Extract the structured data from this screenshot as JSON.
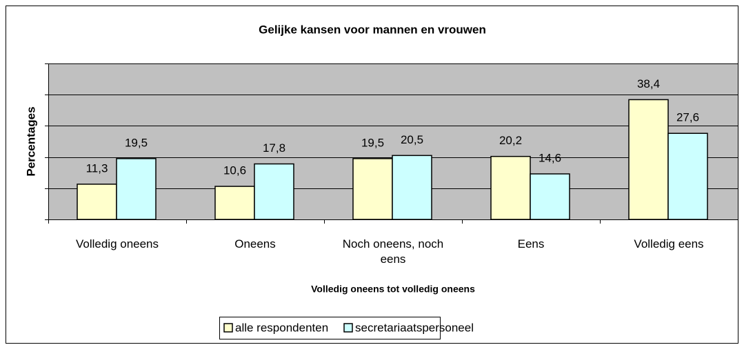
{
  "chart_data": {
    "type": "bar",
    "title": "Gelijke kansen voor mannen en vrouwen",
    "y_label": "Percentages",
    "x_label": "Volledig oneens tot volledig oneens",
    "categories": [
      "Volledig oneens",
      "Oneens",
      "Noch oneens, noch eens",
      "Eens",
      "Volledig eens"
    ],
    "series": [
      {
        "name": "alle respondenten",
        "color": "#ffffcc",
        "values": [
          11.3,
          10.6,
          19.5,
          20.2,
          38.4
        ],
        "value_labels": [
          "11,3",
          "10,6",
          "19,5",
          "20,2",
          "38,4"
        ]
      },
      {
        "name": "secretariaatspersoneel",
        "color": "#ccffff",
        "values": [
          19.5,
          17.8,
          20.5,
          14.6,
          27.6
        ],
        "value_labels": [
          "19,5",
          "17,8",
          "20,5",
          "14,6",
          "27,6"
        ]
      }
    ],
    "ylim": [
      0,
      50
    ],
    "yticks": [
      0,
      10,
      20,
      30,
      40,
      50
    ],
    "grid": true,
    "legend": "bottom"
  }
}
